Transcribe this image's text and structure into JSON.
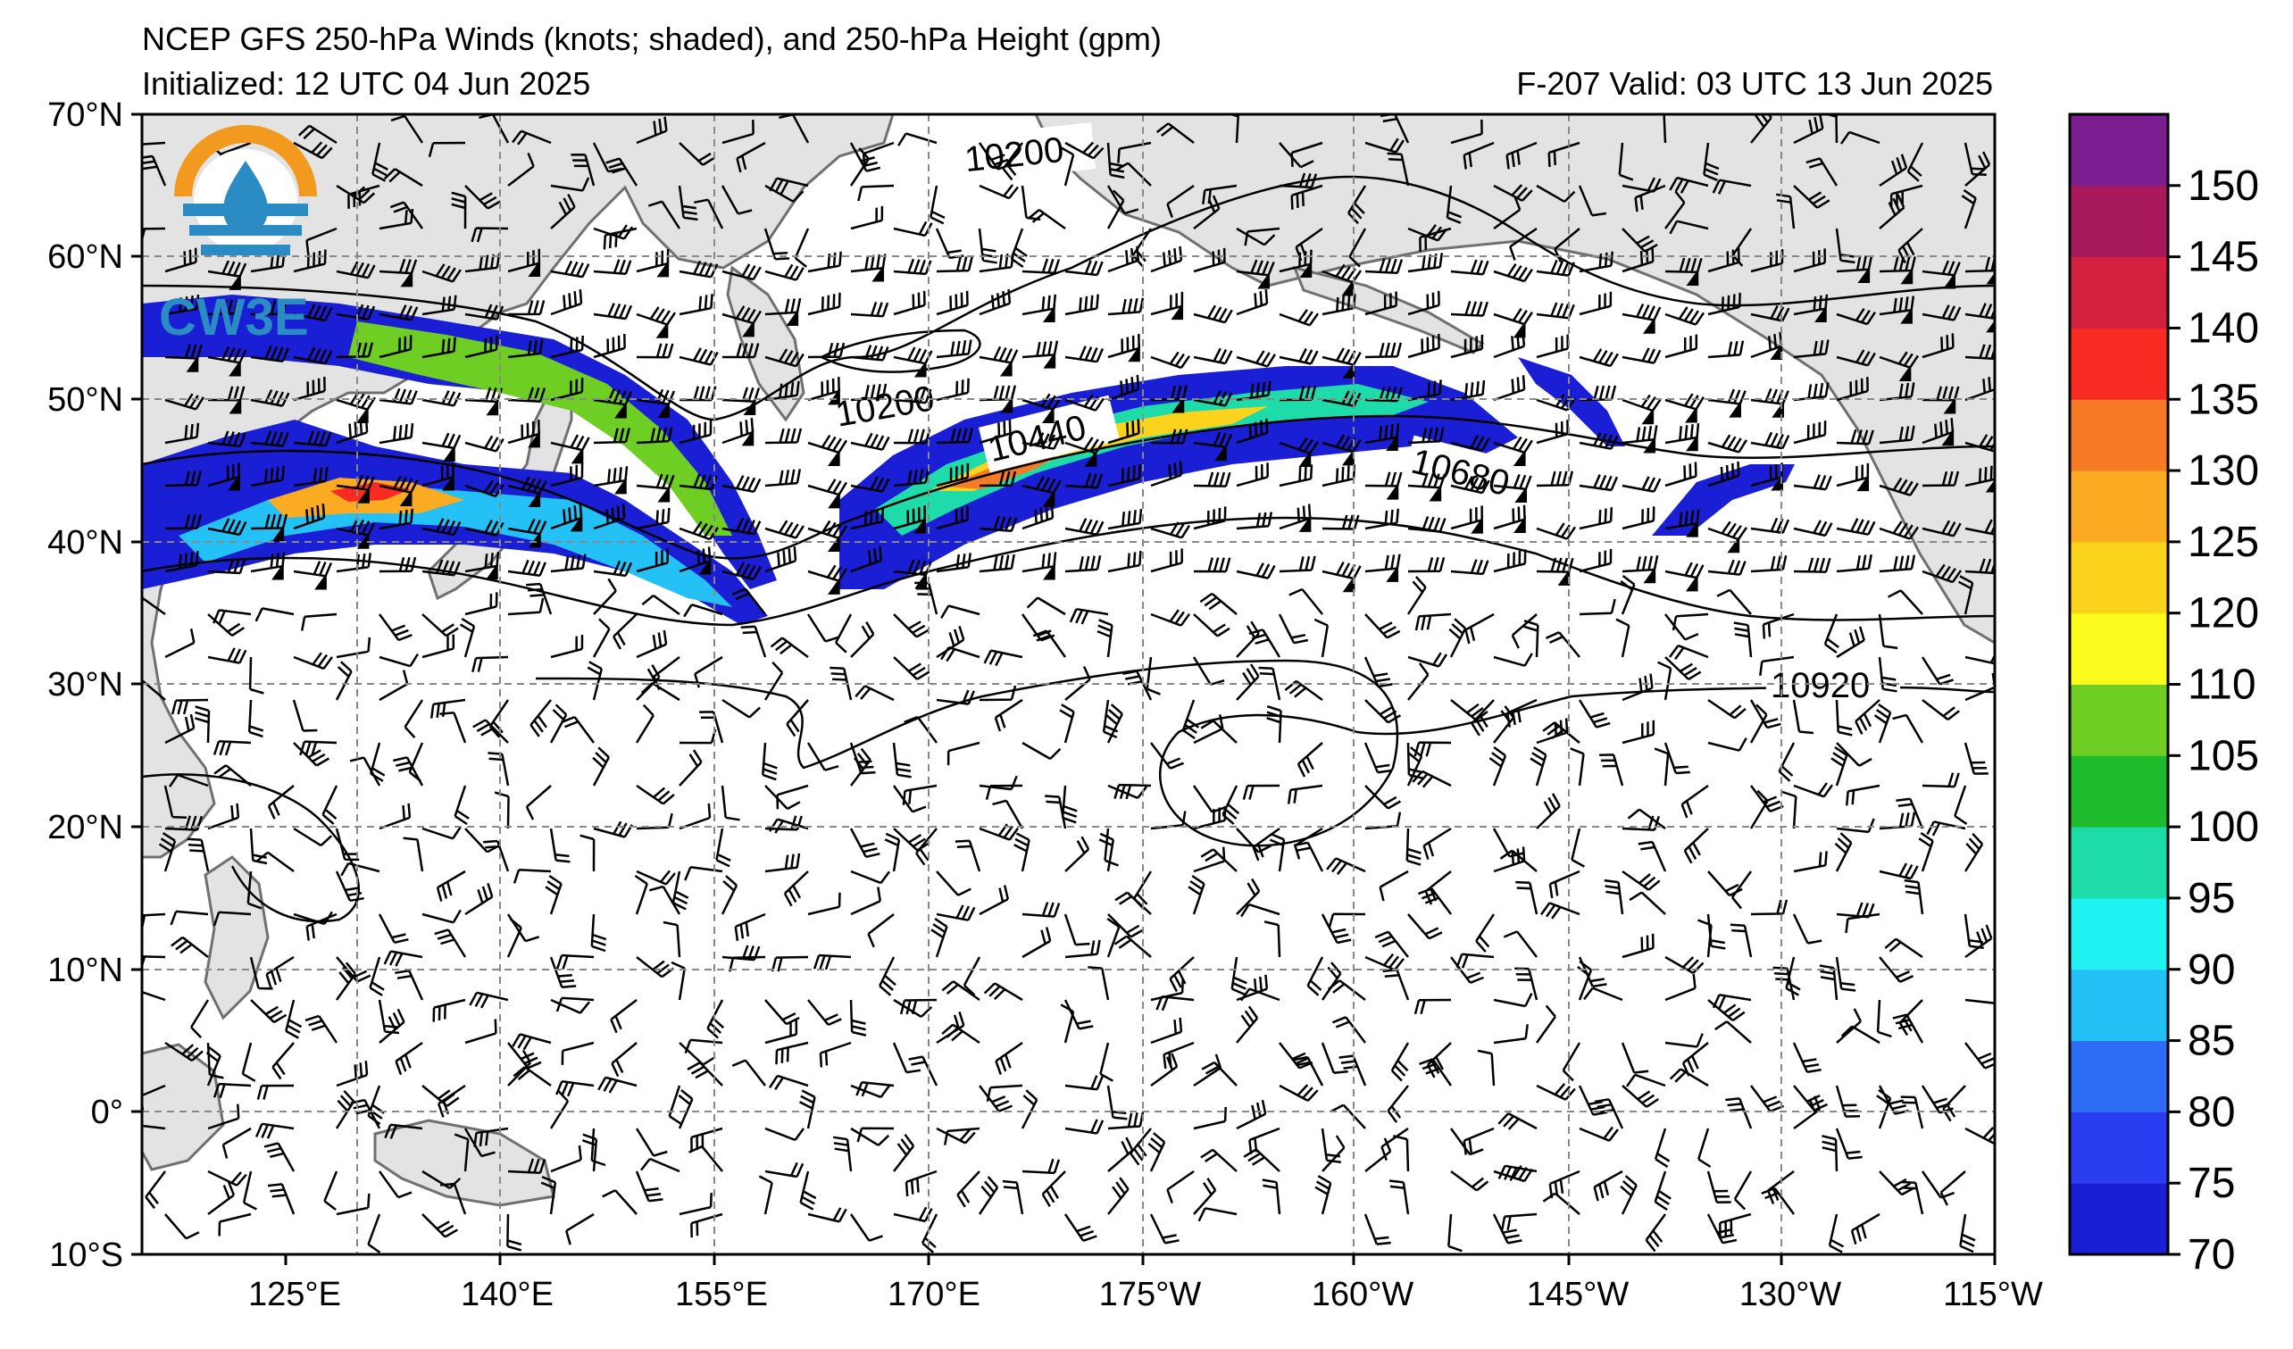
{
  "header": {
    "title": "NCEP GFS 250-hPa Winds (knots; shaded), and 250-hPa Height (gpm)",
    "initialized": "Initialized: 12 UTC 04 Jun 2025",
    "valid": "F-207  Valid: 03 UTC 13 Jun 2025"
  },
  "logo": {
    "text": "CW3E"
  },
  "map": {
    "lat_labels": [
      "70°N",
      "60°N",
      "50°N",
      "40°N",
      "30°N",
      "20°N",
      "10°N",
      "0°",
      "10°S"
    ],
    "lon_labels": [
      "125°E",
      "140°E",
      "155°E",
      "170°E",
      "175°W",
      "160°W",
      "145°W",
      "130°W",
      "115°W"
    ],
    "contour_labels": [
      {
        "text": "10200"
      },
      {
        "text": "10200"
      },
      {
        "text": "10440"
      },
      {
        "text": "10680"
      },
      {
        "text": "10920"
      }
    ],
    "land_color": "#e3e3e3",
    "coast_color": "#707070"
  },
  "colorbar": {
    "labels": [
      "70",
      "75",
      "80",
      "85",
      "90",
      "95",
      "100",
      "105",
      "110",
      "120",
      "125",
      "130",
      "135",
      "140",
      "145",
      "150"
    ],
    "colors": [
      "#1a1fd6",
      "#2a3cf0",
      "#2d6cf5",
      "#24c1f7",
      "#1ff2f0",
      "#1ddca9",
      "#1ebb2c",
      "#6fce23",
      "#fafa1d",
      "#fbd21c",
      "#fbab21",
      "#f77a26",
      "#f82a22",
      "#d41f3e",
      "#a8195c",
      "#7d1d92"
    ]
  }
}
